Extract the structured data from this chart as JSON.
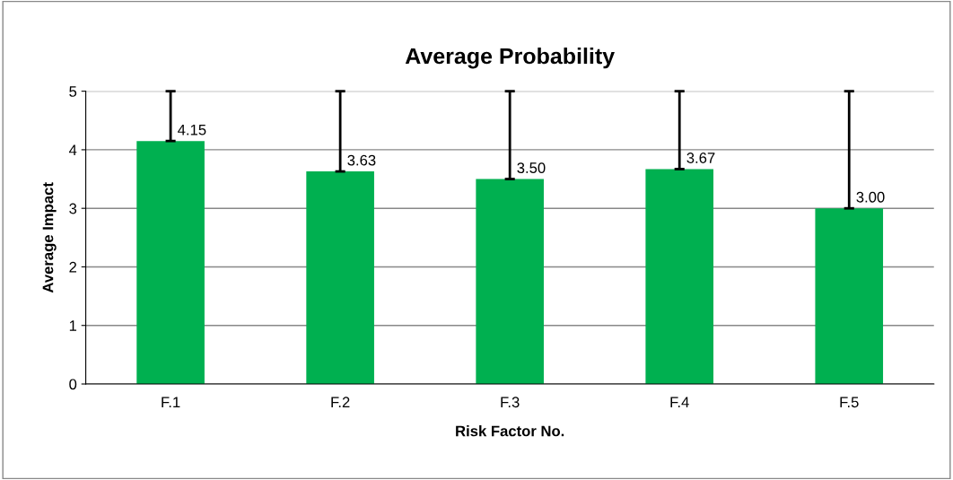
{
  "chart_data": {
    "type": "bar",
    "title": "Average Probability",
    "xlabel": "Risk Factor No.",
    "ylabel": "Average Impact",
    "categories": [
      "F.1",
      "F.2",
      "F.3",
      "F.4",
      "F.5"
    ],
    "values": [
      4.15,
      3.63,
      3.5,
      3.67,
      3.0
    ],
    "value_labels": [
      "4.15",
      "3.63",
      "3.50",
      "3.67",
      "3.00"
    ],
    "errors": [
      [
        4.15,
        5
      ],
      [
        3.63,
        5
      ],
      [
        3.5,
        5
      ],
      [
        3.67,
        5
      ],
      [
        3.0,
        5
      ]
    ],
    "color": "#00b050",
    "ylim": [
      0,
      5
    ],
    "yticks": [
      0,
      1,
      2,
      3,
      4,
      5
    ],
    "grid": "y",
    "legend": false
  }
}
